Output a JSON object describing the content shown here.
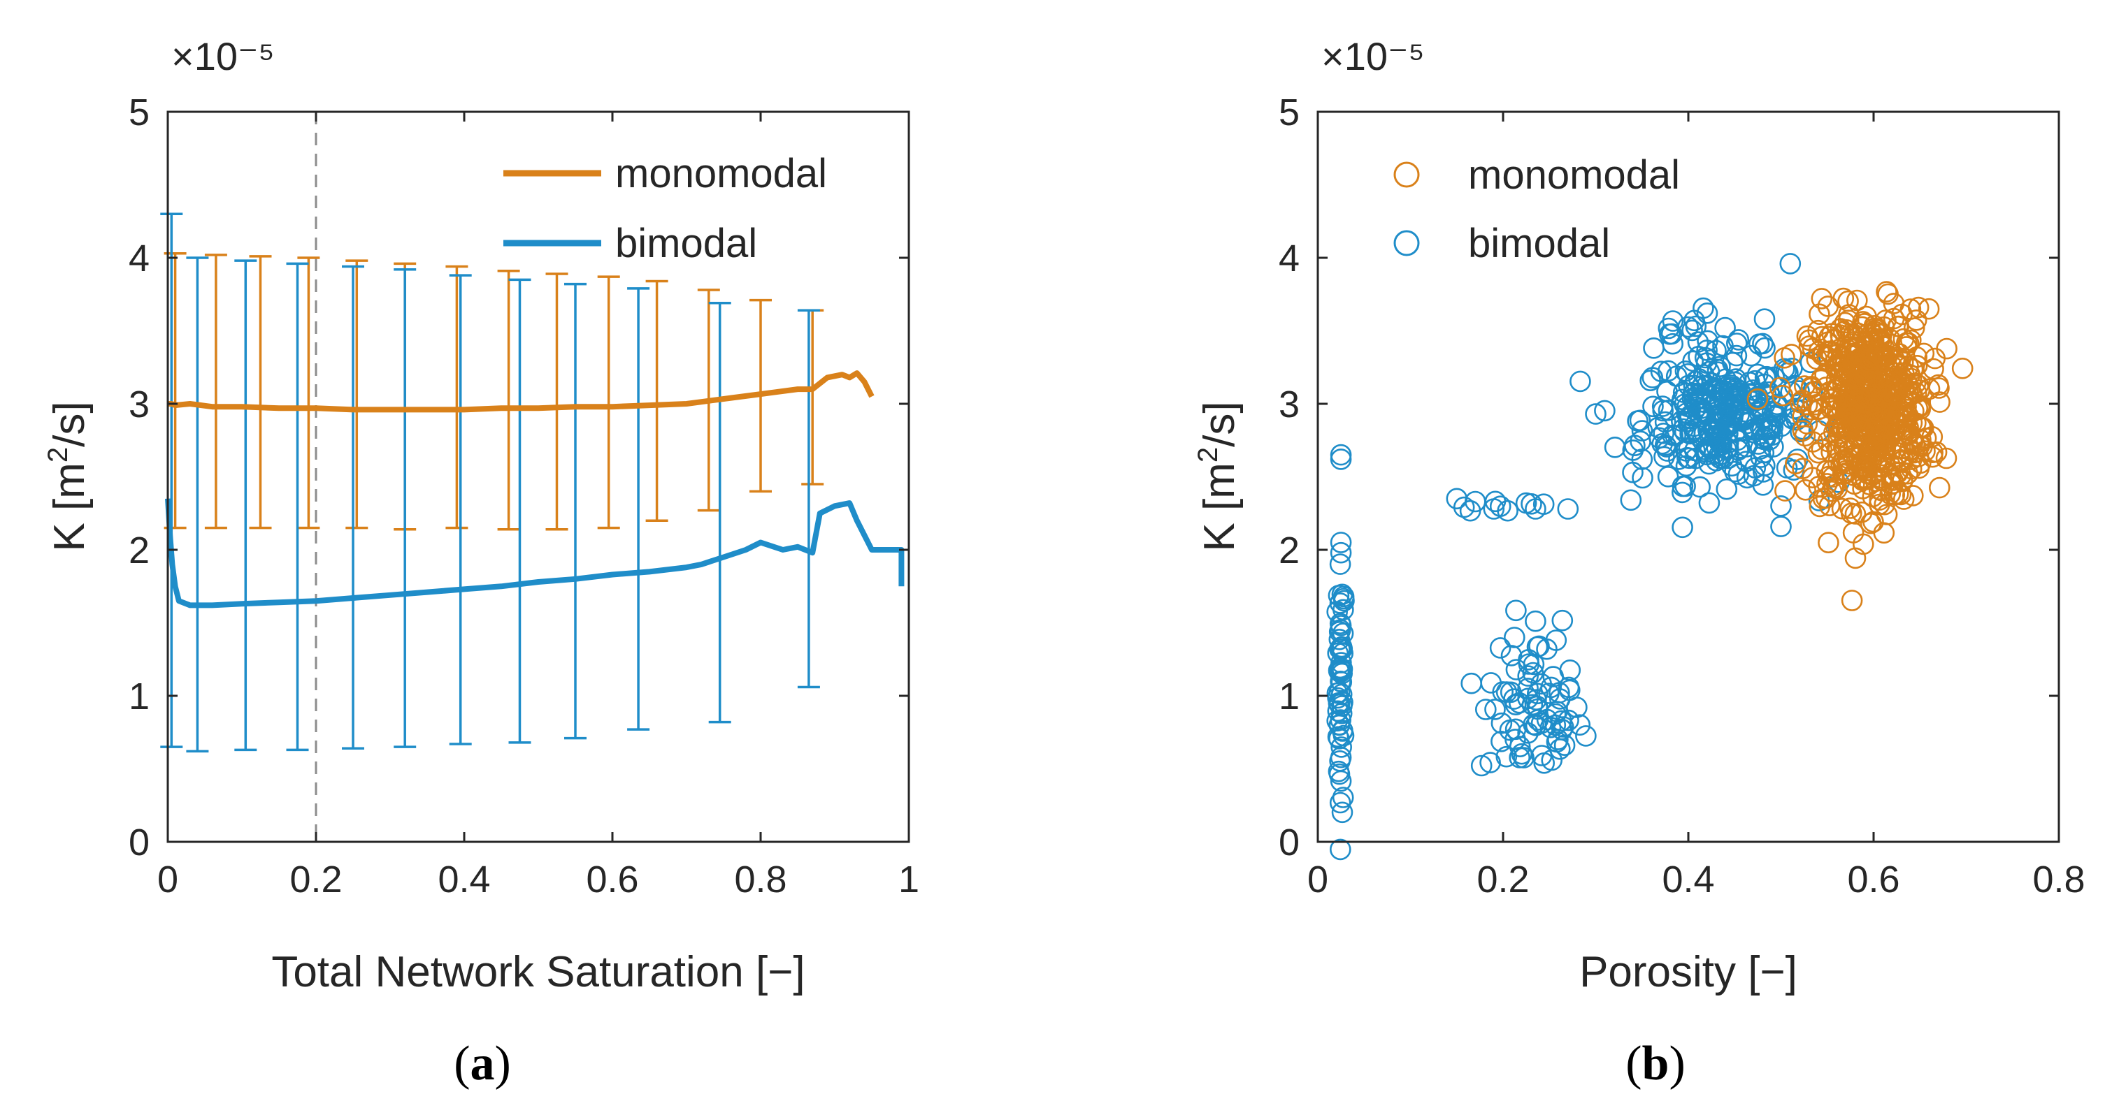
{
  "colors": {
    "monomodal": "#D9811A",
    "bimodal": "#1F8DC9",
    "axis": "#262626",
    "dashed": "#8C8C8C"
  },
  "chart_data": [
    {
      "type": "line",
      "panel": "a",
      "caption_letter": "a",
      "xlabel": "Total Network Saturation [−]",
      "ylabel": "K [m²/s]",
      "y_multiplier": "×10⁻⁵",
      "xlim": [
        0,
        1
      ],
      "ylim": [
        0,
        5
      ],
      "xticks": [
        "0",
        "0.2",
        "0.4",
        "0.6",
        "0.8",
        "1"
      ],
      "yticks": [
        "0",
        "1",
        "2",
        "3",
        "4",
        "5"
      ],
      "reference_line_x": 0.2,
      "legend_position": "top-right",
      "series": [
        {
          "name": "monomodal",
          "color_key": "monomodal",
          "x": [
            0.0,
            0.005,
            0.01,
            0.03,
            0.06,
            0.1,
            0.15,
            0.2,
            0.25,
            0.3,
            0.35,
            0.4,
            0.45,
            0.5,
            0.55,
            0.6,
            0.65,
            0.7,
            0.73,
            0.76,
            0.79,
            0.82,
            0.85,
            0.87,
            0.89,
            0.91,
            0.92,
            0.93,
            0.94,
            0.95
          ],
          "y": [
            3.0,
            3.0,
            2.99,
            3.0,
            2.98,
            2.98,
            2.97,
            2.97,
            2.96,
            2.96,
            2.96,
            2.96,
            2.97,
            2.97,
            2.98,
            2.98,
            2.99,
            3.0,
            3.02,
            3.04,
            3.06,
            3.08,
            3.1,
            3.1,
            3.18,
            3.2,
            3.18,
            3.21,
            3.15,
            3.05
          ],
          "error_bars": {
            "x": [
              0.01,
              0.065,
              0.125,
              0.19,
              0.255,
              0.32,
              0.39,
              0.46,
              0.525,
              0.595,
              0.66,
              0.73,
              0.8,
              0.87
            ],
            "lower": [
              2.15,
              2.15,
              2.15,
              2.15,
              2.15,
              2.14,
              2.15,
              2.14,
              2.14,
              2.15,
              2.2,
              2.27,
              2.4,
              2.45
            ],
            "upper": [
              4.03,
              4.02,
              4.01,
              4.0,
              3.98,
              3.96,
              3.94,
              3.91,
              3.89,
              3.87,
              3.84,
              3.78,
              3.71,
              3.64
            ]
          }
        },
        {
          "name": "bimodal",
          "color_key": "bimodal",
          "x": [
            0.0,
            0.003,
            0.006,
            0.01,
            0.015,
            0.03,
            0.06,
            0.1,
            0.15,
            0.2,
            0.25,
            0.3,
            0.35,
            0.4,
            0.45,
            0.5,
            0.55,
            0.6,
            0.65,
            0.7,
            0.72,
            0.75,
            0.78,
            0.8,
            0.83,
            0.85,
            0.87,
            0.88,
            0.9,
            0.92,
            0.93,
            0.95,
            0.97,
            0.99,
            0.99
          ],
          "y": [
            2.35,
            2.1,
            1.9,
            1.75,
            1.65,
            1.62,
            1.62,
            1.63,
            1.64,
            1.65,
            1.67,
            1.69,
            1.71,
            1.73,
            1.75,
            1.78,
            1.8,
            1.83,
            1.85,
            1.88,
            1.9,
            1.95,
            2.0,
            2.05,
            2.0,
            2.02,
            1.98,
            2.25,
            2.3,
            2.32,
            2.2,
            2.0,
            2.0,
            2.0,
            1.75
          ],
          "error_bars": {
            "x": [
              0.005,
              0.04,
              0.105,
              0.175,
              0.25,
              0.32,
              0.395,
              0.475,
              0.55,
              0.635,
              0.745,
              0.865
            ],
            "lower": [
              0.65,
              0.62,
              0.63,
              0.63,
              0.64,
              0.65,
              0.67,
              0.68,
              0.71,
              0.77,
              0.82,
              1.06
            ],
            "upper": [
              4.3,
              4.0,
              3.98,
              3.96,
              3.94,
              3.92,
              3.88,
              3.85,
              3.82,
              3.79,
              3.69,
              3.64
            ]
          }
        }
      ]
    },
    {
      "type": "scatter",
      "panel": "b",
      "caption_letter": "b",
      "xlabel": "Porosity [−]",
      "ylabel": "K [m²/s]",
      "y_multiplier": "×10⁻⁵",
      "xlim": [
        0,
        0.8
      ],
      "ylim": [
        0,
        5
      ],
      "xticks": [
        "0",
        "0.2",
        "0.4",
        "0.6",
        "0.8"
      ],
      "yticks": [
        "0",
        "1",
        "2",
        "3",
        "4",
        "5"
      ],
      "legend_position": "top-left",
      "series": [
        {
          "name": "monomodal",
          "color_key": "monomodal",
          "clusters": [
            {
              "x_mean": 0.595,
              "x_spread": 0.032,
              "y_mean": 2.98,
              "y_spread": 0.33,
              "count": 650
            }
          ]
        },
        {
          "name": "bimodal",
          "color_key": "bimodal",
          "clusters": [
            {
              "x_mean": 0.025,
              "x_spread": 0.002,
              "y_mean": 1.05,
              "y_spread": 0.42,
              "count": 60
            },
            {
              "x_mean": 0.23,
              "x_spread": 0.028,
              "y_mean": 0.85,
              "y_spread": 0.22,
              "count": 70
            },
            {
              "x_mean": 0.225,
              "x_spread": 0.03,
              "y_mean": 1.45,
              "y_spread": 0.12,
              "count": 8
            },
            {
              "x_mean": 0.2,
              "x_spread": 0.04,
              "y_mean": 2.3,
              "y_spread": 0.03,
              "count": 7
            },
            {
              "x_mean": 0.44,
              "x_spread": 0.045,
              "y_mean": 2.9,
              "y_spread": 0.22,
              "count": 300
            },
            {
              "x_mean": 0.41,
              "x_spread": 0.03,
              "y_mean": 3.5,
              "y_spread": 0.12,
              "count": 15
            }
          ],
          "points": [
            {
              "x": 0.025,
              "y": 2.65
            },
            {
              "x": 0.025,
              "y": 2.62
            },
            {
              "x": 0.025,
              "y": 2.05
            },
            {
              "x": 0.025,
              "y": 1.98
            },
            {
              "x": 0.15,
              "y": 2.35
            },
            {
              "x": 0.17,
              "y": 2.33
            },
            {
              "x": 0.19,
              "y": 2.28
            },
            {
              "x": 0.225,
              "y": 2.32
            },
            {
              "x": 0.235,
              "y": 2.28
            },
            {
              "x": 0.27,
              "y": 2.28
            },
            {
              "x": 0.3,
              "y": 2.93
            },
            {
              "x": 0.34,
              "y": 2.53
            },
            {
              "x": 0.35,
              "y": 2.62
            },
            {
              "x": 0.51,
              "y": 3.96
            },
            {
              "x": 0.5,
              "y": 2.16
            },
            {
              "x": 0.5,
              "y": 2.3
            }
          ]
        }
      ]
    }
  ]
}
